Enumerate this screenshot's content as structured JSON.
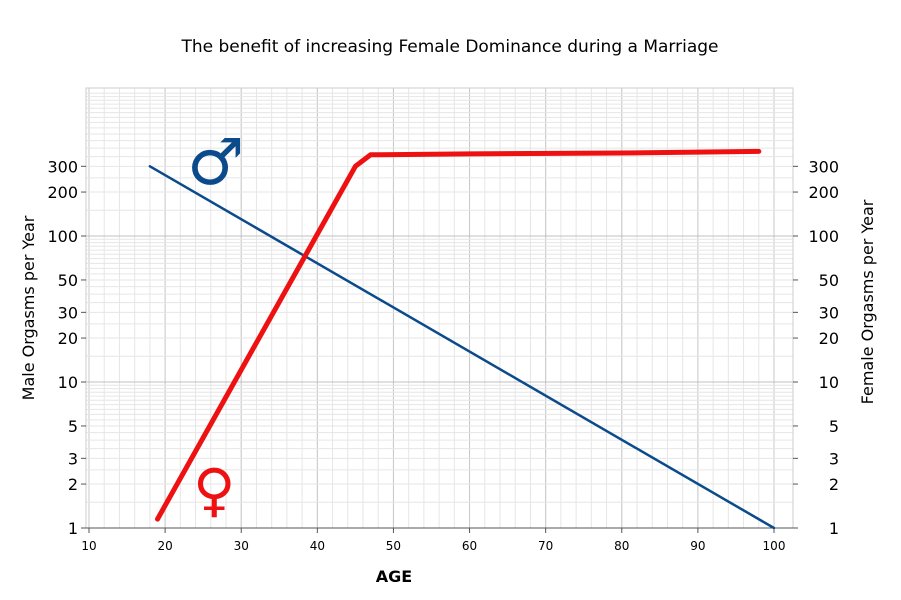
{
  "chart_data": {
    "type": "line",
    "title": "The benefit of increasing Female Dominance during a Marriage",
    "xlabel": "AGE",
    "ylabel_left": "Male Orgasms per Year",
    "ylabel_right": "Female Orgasms per Year",
    "xlim": [
      10,
      100
    ],
    "ylim": [
      1,
      1000
    ],
    "yscale": "log",
    "x_ticks": [
      10,
      20,
      30,
      40,
      50,
      60,
      70,
      80,
      90,
      100
    ],
    "y_ticks": [
      1,
      2,
      3,
      5,
      10,
      20,
      30,
      50,
      100,
      200,
      300
    ],
    "grid": true,
    "series": [
      {
        "name": "Male",
        "symbol": "♂",
        "color": "#0b4a8b",
        "x": [
          18,
          100
        ],
        "y": [
          300,
          1
        ]
      },
      {
        "name": "Female",
        "symbol": "♀",
        "color": "#ee1111",
        "x": [
          19,
          45,
          47,
          60,
          80,
          98
        ],
        "y": [
          1.15,
          300,
          360,
          365,
          370,
          380
        ]
      }
    ]
  }
}
